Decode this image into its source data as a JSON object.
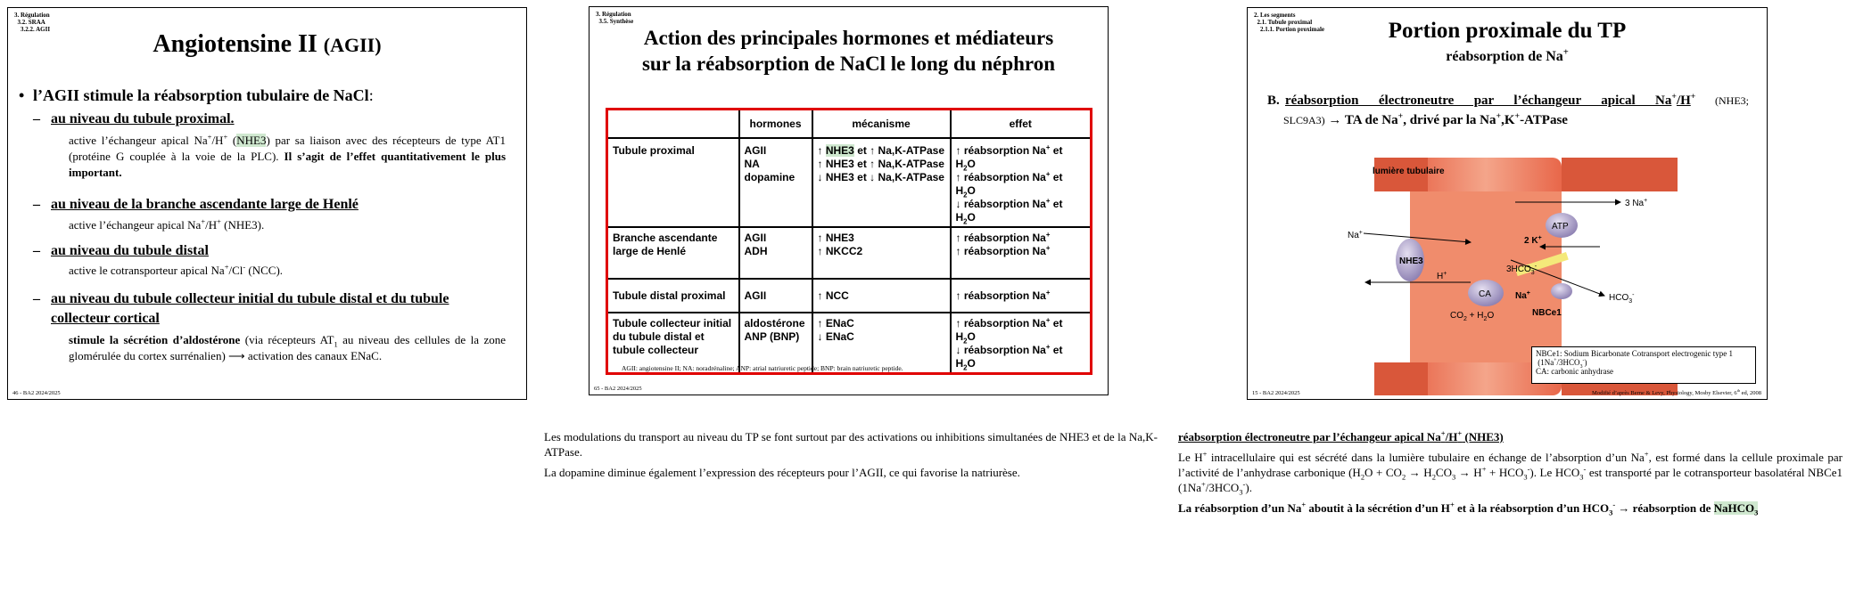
{
  "slide1": {
    "crumbs": [
      "3. Régulation",
      "3.2. SRAA",
      "3.2.2. AGII"
    ],
    "title_main": "Angiotensine II",
    "title_abbr": "(AGII)",
    "bullet": "l’AGII stimule la réabsorption tubulaire de NaCl",
    "bullet_colon": ":",
    "s1_head": "au niveau du tubule proximal",
    "s1_text_a": "active l’échangeur apical Na",
    "s1_text_b": "/H",
    "s1_text_c": " (",
    "s1_nhe3": "NHE3",
    "s1_text_d": ") par sa liaison avec des récepteurs de type AT1 (protéine G couplée à la voie de la PLC).",
    "s1_bold": " Il s’agit de l’effet quantitativement le plus important.",
    "s2_head": "au niveau de la branche ascendante large de Henlé",
    "s2_text_a": "active l’échangeur apical Na",
    "s2_text_b": "/H",
    "s2_text_c": " (NHE3).",
    "s3_head": "au niveau du tubule distal",
    "s3_text_a": "active le cotransporteur apical Na",
    "s3_text_b": "/Cl",
    "s3_text_c": " (NCC).",
    "s4_head": "au niveau du tubule collecteur initial du tubule distal et du tubule collecteur cortical",
    "s4_bold": "stimule la sécrétion d’aldostérone",
    "s4_text_a": " (via récepteurs AT",
    "s4_text_b": " au niveau des cellules de la zone glomérulée du cortex surrénalien) ⟶ activation des canaux ENaC.",
    "footer": "46 - BA2 2024/2025"
  },
  "slide2": {
    "crumbs": [
      "3. Régulation",
      "3.5. Synthèse"
    ],
    "title_line1": "Action des principales hormones et médiateurs",
    "title_line2": "sur la réabsorption de NaCl le long du néphron",
    "headers": [
      "hormones",
      "mécanisme",
      "effet"
    ],
    "rows": [
      {
        "segment": "Tubule proximal",
        "hormones": [
          "AGII",
          "NA",
          "dopamine"
        ],
        "mech": [
          [
            "↑ ",
            "NHE3",
            " et ↑ Na,K-ATPase"
          ],
          [
            "↑ NHE3 et ↑ Na,K-ATPase"
          ],
          [
            "↓ NHE3 et ↓ Na,K-ATPase"
          ]
        ],
        "effet": [
          "↑ réabsorption Na",
          "↑ réabsorption Na",
          "↓ réabsorption Na"
        ]
      },
      {
        "segment": "Branche ascendante large  de Henlé",
        "hormones": [
          "AGII",
          "ADH"
        ],
        "mech": [
          "↑ NHE3",
          "↑ NKCC2"
        ],
        "effet": [
          "↑ réabsorption Na",
          "↑ réabsorption Na"
        ]
      },
      {
        "segment": "Tubule distal proximal",
        "hormones": [
          "AGII"
        ],
        "mech": [
          "↑ NCC"
        ],
        "effet": [
          "↑ réabsorption Na"
        ]
      },
      {
        "segment": "Tubule collecteur initial du tubule distal et tubule collecteur",
        "hormones": [
          "aldostérone",
          "ANP (BNP)"
        ],
        "mech": [
          "↑ ENaC",
          "↓ ENaC"
        ],
        "effet": [
          "↑ réabsorption Na",
          "↓ réabsorption Na"
        ]
      }
    ],
    "water_suffix": "et H",
    "abbrev": "AGII: angiotensine II; NA: noradrénaline; ANP: atrial natriuretic peptide; BNP: brain natriuretic peptide.",
    "footer": "65 - BA2 2024/2025"
  },
  "slide3": {
    "crumbs": [
      "2. Les segments",
      "2.1. Tubule proximal",
      "2.1.1. Portion proximale"
    ],
    "title": "Portion proximale du TP",
    "subtitle_a": "réabsorption de Na",
    "heading_letter": "B.",
    "heading_a": "réabsorption électroneutre par l’échangeur apical Na",
    "heading_b": "/H",
    "heading_c": " (NHE3;",
    "heading_line2_a": "SLC9A3)",
    "heading_line2_b": " → TA de Na",
    "heading_line2_c": ", drivé par la Na",
    "heading_line2_d": ",K",
    "heading_line2_e": "-ATPase",
    "diagram": {
      "lumen": "lumière tubulaire",
      "na_in": "Na",
      "nhe3": "NHE3",
      "h": "H",
      "ca": "CA",
      "co2": "CO",
      "h2o": " + H",
      "atp": "ATP",
      "three_na": "3 Na",
      "two_k": "2 K",
      "three_hco3": "3HCO",
      "hco3": "HCO",
      "na_cell": "Na",
      "nbce1": "NBCe1"
    },
    "legend_line1": "NBCe1: Sodium Bicarbonate Cotransport electrogenic type 1",
    "legend_line2": "(1Na",
    "legend_line2b": "/3HCO",
    "legend_line3": "CA: carbonic anhydrase",
    "footer_left": "15 - BA2 2024/2025",
    "footer_right": "Modifié d’après Berne & Levy, Physiology, Mosby Elsevier, 6",
    "footer_right2": " ed, 2008"
  },
  "notes_middle": {
    "p1": "Les modulations du transport au niveau du TP se font surtout par des activations ou inhibitions simultanées  de NHE3 et de la Na,K-ATPase.",
    "p2": "La dopamine diminue également l’expression des récepteurs pour l’AGII, ce qui favorise la natriurèse."
  },
  "notes_right": {
    "heading_a": "réabsorption électroneutre par l’échangeur apical Na",
    "heading_b": "/H",
    "heading_c": " (NHE3)",
    "p1_a": "Le H",
    "p1_b": " intracellulaire qui est sécrété dans la lumière tubulaire en échange de l’absorption d’un Na",
    "p1_c": ", est formé dans la cellule proximale par l’activité de l’anhydrase carbonique (H",
    "p1_d": "O + CO",
    "p1_e": " → H",
    "p1_f": "CO",
    "p1_g": " → H",
    "p1_h": " + HCO",
    "p1_i": "). Le HCO",
    "p1_j": " est transporté par le cotransporteur basolatéral NBCe1 (1Na",
    "p1_k": "/3HCO",
    "p1_l": ").",
    "p2_a": "La réabsorption d’un Na",
    "p2_b": " aboutit à la sécrétion d’un H",
    "p2_c": " et à la réabsorption d’un HCO",
    "p2_d": " → réabsorption de ",
    "p2_e": "NaHCO"
  }
}
